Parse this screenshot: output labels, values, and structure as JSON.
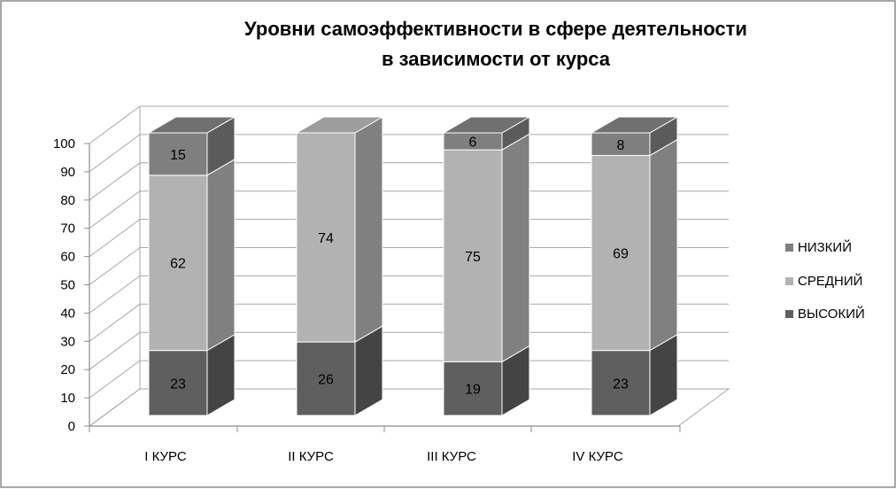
{
  "chart_data": {
    "type": "bar",
    "stacked": true,
    "three_d": true,
    "title_lines": [
      "Уровни самоэффективности в сфере деятельности",
      "в зависимости от курса"
    ],
    "categories": [
      "I КУРС",
      "II КУРС",
      "III КУРС",
      "IV КУРС"
    ],
    "series": [
      {
        "name": "ВЫСОКИЙ",
        "values": [
          23,
          26,
          19,
          23
        ],
        "color": "#5f5f5f"
      },
      {
        "name": "СРЕДНИЙ",
        "values": [
          62,
          74,
          75,
          69
        ],
        "color": "#b2b2b2"
      },
      {
        "name": "НИЗКИЙ",
        "values": [
          15,
          0,
          6,
          8
        ],
        "color": "#7f7f7f"
      }
    ],
    "data_labels": [
      [
        "23",
        "26",
        "19",
        "23"
      ],
      [
        "62",
        "74",
        "75",
        "69"
      ],
      [
        "15",
        "",
        "6",
        "8"
      ]
    ],
    "legend_order": [
      "НИЗКИЙ",
      "СРЕДНИЙ",
      "ВЫСОКИЙ"
    ],
    "legend_position": "right",
    "yticks": [
      "0",
      "10",
      "20",
      "30",
      "40",
      "50",
      "60",
      "70",
      "80",
      "90",
      "100"
    ],
    "ylim": [
      0,
      100
    ],
    "grid": true
  }
}
